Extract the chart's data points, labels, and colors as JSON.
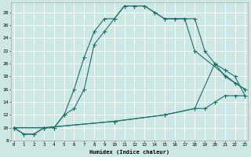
{
  "xlabel": "Humidex (Indice chaleur)",
  "bg_color": "#cde8e4",
  "grid_color": "#b8d8d4",
  "line_color": "#1e6e6a",
  "xlim_min": -0.3,
  "xlim_max": 23.3,
  "ylim_min": 8,
  "ylim_max": 29.5,
  "xtick_vals": [
    0,
    1,
    2,
    3,
    4,
    5,
    6,
    7,
    8,
    9,
    10,
    11,
    12,
    13,
    14,
    15,
    16,
    17,
    18,
    19,
    20,
    21,
    22,
    23
  ],
  "ytick_vals": [
    8,
    10,
    12,
    14,
    16,
    18,
    20,
    22,
    24,
    26,
    28
  ],
  "line1_x": [
    0,
    1,
    2,
    3,
    4,
    5,
    6,
    7,
    8,
    9,
    10,
    11,
    12,
    13,
    14,
    15,
    16,
    17,
    18,
    19,
    20,
    21,
    22,
    23
  ],
  "line1_y": [
    10,
    9,
    9,
    10,
    10,
    12,
    16,
    21,
    25,
    27,
    27,
    29,
    29,
    29,
    28,
    27,
    27,
    27,
    27,
    22,
    20,
    18,
    17,
    16
  ],
  "line2_x": [
    0,
    1,
    2,
    3,
    4,
    5,
    6,
    7,
    8,
    9,
    10,
    11,
    12,
    13,
    14,
    15,
    16,
    17,
    18,
    22,
    23
  ],
  "line2_y": [
    10,
    9,
    9,
    10,
    10,
    12,
    13,
    16,
    23,
    25,
    27,
    29,
    29,
    29,
    28,
    27,
    27,
    27,
    22,
    17,
    16
  ],
  "line3_x": [
    0,
    3,
    10,
    15,
    18,
    19,
    20,
    21,
    22,
    23
  ],
  "line3_y": [
    10,
    10,
    11,
    12,
    13,
    13,
    14,
    15,
    15,
    15
  ],
  "line4_x": [
    0,
    3,
    10,
    15,
    18,
    20,
    21,
    22,
    23
  ],
  "line4_y": [
    10,
    10,
    11,
    12,
    13,
    20,
    19,
    18,
    15
  ]
}
